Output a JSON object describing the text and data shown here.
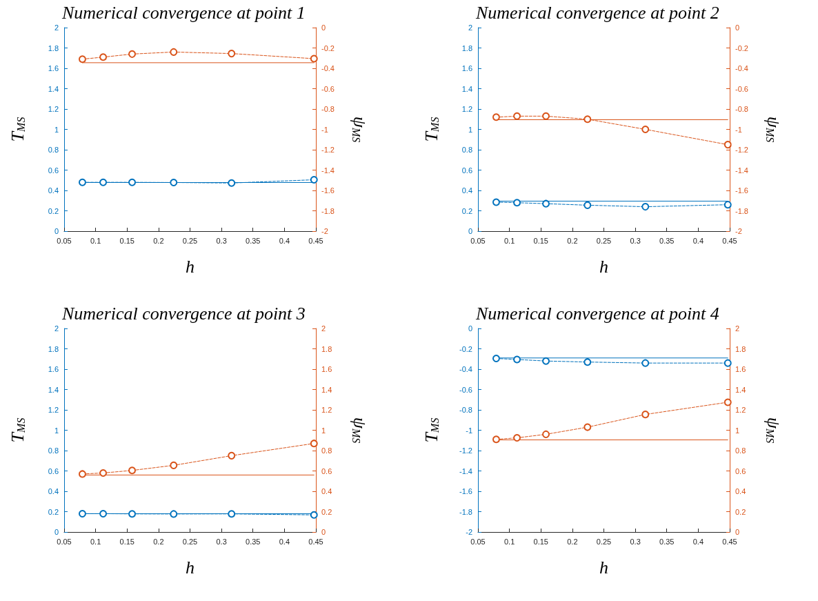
{
  "chart_data": [
    {
      "type": "line",
      "title": "Numerical convergence at point 1",
      "xlabel": "h",
      "ylabel": "T$_{MS}$",
      "y2label": "ψ$_{MS}$",
      "xlim": [
        0.05,
        0.45
      ],
      "xticks": [
        0.05,
        0.1,
        0.15,
        0.2,
        0.25,
        0.3,
        0.35,
        0.4,
        0.45
      ],
      "ylim": [
        0,
        2
      ],
      "yticks": [
        0,
        0.2,
        0.4,
        0.6,
        0.8,
        1,
        1.2,
        1.4,
        1.6,
        1.8,
        2
      ],
      "y2lim": [
        -2,
        0
      ],
      "y2ticks": [
        -2,
        -1.8,
        -1.6,
        -1.4,
        -1.2,
        -1,
        -0.8,
        -0.6,
        -0.4,
        -0.2,
        0
      ],
      "grid": false,
      "series": [
        {
          "color": "#0072bd",
          "x": [
            0.079,
            0.112,
            0.158,
            0.224,
            0.316,
            0.447
          ],
          "values": [
            0.48,
            0.48,
            0.48,
            0.478,
            0.473,
            0.505
          ],
          "line_style": "dashed",
          "marker": "circle"
        },
        {
          "color": "#0072bd",
          "x": [
            0.079,
            0.447
          ],
          "values": [
            0.478,
            0.478
          ],
          "line_style": "solid",
          "marker": "none"
        },
        {
          "color": "#d95319",
          "axis": "y2",
          "x": [
            0.079,
            0.112,
            0.158,
            0.224,
            0.316,
            0.447
          ],
          "values": [
            -0.31,
            -0.29,
            -0.26,
            -0.24,
            -0.255,
            -0.305
          ],
          "line_style": "dashed",
          "marker": "circle"
        },
        {
          "color": "#d95319",
          "axis": "y2",
          "x": [
            0.079,
            0.447
          ],
          "values": [
            -0.345,
            -0.345
          ],
          "line_style": "solid",
          "marker": "none"
        }
      ]
    },
    {
      "type": "line",
      "title": "Numerical convergence at point 2",
      "xlabel": "h",
      "ylabel": "T$_{MS}$",
      "y2label": "ψ$_{MS}$",
      "xlim": [
        0.05,
        0.45
      ],
      "xticks": [
        0.05,
        0.1,
        0.15,
        0.2,
        0.25,
        0.3,
        0.35,
        0.4,
        0.45
      ],
      "ylim": [
        0,
        2
      ],
      "yticks": [
        0,
        0.2,
        0.4,
        0.6,
        0.8,
        1,
        1.2,
        1.4,
        1.6,
        1.8,
        2
      ],
      "y2lim": [
        -2,
        0
      ],
      "y2ticks": [
        -2,
        -1.8,
        -1.6,
        -1.4,
        -1.2,
        -1,
        -0.8,
        -0.6,
        -0.4,
        -0.2,
        0
      ],
      "grid": false,
      "series": [
        {
          "color": "#0072bd",
          "x": [
            0.079,
            0.112,
            0.158,
            0.224,
            0.316,
            0.447
          ],
          "values": [
            0.285,
            0.28,
            0.27,
            0.255,
            0.24,
            0.26
          ],
          "line_style": "dashed",
          "marker": "circle"
        },
        {
          "color": "#0072bd",
          "x": [
            0.079,
            0.447
          ],
          "values": [
            0.295,
            0.295
          ],
          "line_style": "solid",
          "marker": "none"
        },
        {
          "color": "#d95319",
          "axis": "y2",
          "x": [
            0.079,
            0.112,
            0.158,
            0.224,
            0.316,
            0.447
          ],
          "values": [
            -0.88,
            -0.87,
            -0.87,
            -0.9,
            -1.0,
            -1.15
          ],
          "line_style": "dashed",
          "marker": "circle"
        },
        {
          "color": "#d95319",
          "axis": "y2",
          "x": [
            0.079,
            0.447
          ],
          "values": [
            -0.905,
            -0.905
          ],
          "line_style": "solid",
          "marker": "none"
        }
      ]
    },
    {
      "type": "line",
      "title": "Numerical convergence at point 3",
      "xlabel": "h",
      "ylabel": "T$_{MS}$",
      "y2label": "ψ$_{MS}$",
      "xlim": [
        0.05,
        0.45
      ],
      "xticks": [
        0.05,
        0.1,
        0.15,
        0.2,
        0.25,
        0.3,
        0.35,
        0.4,
        0.45
      ],
      "ylim": [
        0,
        2
      ],
      "yticks": [
        0,
        0.2,
        0.4,
        0.6,
        0.8,
        1,
        1.2,
        1.4,
        1.6,
        1.8,
        2
      ],
      "y2lim": [
        0,
        2
      ],
      "y2ticks": [
        0,
        0.2,
        0.4,
        0.6,
        0.8,
        1,
        1.2,
        1.4,
        1.6,
        1.8,
        2
      ],
      "grid": false,
      "series": [
        {
          "color": "#0072bd",
          "x": [
            0.079,
            0.112,
            0.158,
            0.224,
            0.316,
            0.447
          ],
          "values": [
            0.18,
            0.18,
            0.178,
            0.177,
            0.178,
            0.168
          ],
          "line_style": "dashed",
          "marker": "circle"
        },
        {
          "color": "#0072bd",
          "x": [
            0.079,
            0.447
          ],
          "values": [
            0.18,
            0.18
          ],
          "line_style": "solid",
          "marker": "none"
        },
        {
          "color": "#d95319",
          "axis": "y2",
          "x": [
            0.079,
            0.112,
            0.158,
            0.224,
            0.316,
            0.447
          ],
          "values": [
            0.57,
            0.58,
            0.605,
            0.655,
            0.75,
            0.87
          ],
          "line_style": "dashed",
          "marker": "circle"
        },
        {
          "color": "#d95319",
          "axis": "y2",
          "x": [
            0.079,
            0.447
          ],
          "values": [
            0.56,
            0.56
          ],
          "line_style": "solid",
          "marker": "none"
        }
      ]
    },
    {
      "type": "line",
      "title": "Numerical convergence at point 4",
      "xlabel": "h",
      "ylabel": "T$_{MS}$",
      "y2label": "ψ$_{MS}$",
      "xlim": [
        0.05,
        0.45
      ],
      "xticks": [
        0.05,
        0.1,
        0.15,
        0.2,
        0.25,
        0.3,
        0.35,
        0.4,
        0.45
      ],
      "ylim": [
        -2,
        0
      ],
      "yticks": [
        -2,
        -1.8,
        -1.6,
        -1.4,
        -1.2,
        -1,
        -0.8,
        -0.6,
        -0.4,
        -0.2,
        0
      ],
      "y2lim": [
        0,
        2
      ],
      "y2ticks": [
        0,
        0.2,
        0.4,
        0.6,
        0.8,
        1,
        1.2,
        1.4,
        1.6,
        1.8,
        2
      ],
      "grid": false,
      "series": [
        {
          "color": "#0072bd",
          "x": [
            0.079,
            0.112,
            0.158,
            0.224,
            0.316,
            0.447
          ],
          "values": [
            -0.295,
            -0.305,
            -0.32,
            -0.33,
            -0.34,
            -0.34
          ],
          "line_style": "dashed",
          "marker": "circle"
        },
        {
          "color": "#0072bd",
          "x": [
            0.079,
            0.447
          ],
          "values": [
            -0.29,
            -0.29
          ],
          "line_style": "solid",
          "marker": "none"
        },
        {
          "color": "#d95319",
          "axis": "y2",
          "x": [
            0.079,
            0.112,
            0.158,
            0.224,
            0.316,
            0.447
          ],
          "values": [
            0.91,
            0.925,
            0.96,
            1.03,
            1.155,
            1.275
          ],
          "line_style": "dashed",
          "marker": "circle"
        },
        {
          "color": "#d95319",
          "axis": "y2",
          "x": [
            0.079,
            0.447
          ],
          "values": [
            0.905,
            0.905
          ],
          "line_style": "solid",
          "marker": "none"
        }
      ]
    }
  ]
}
